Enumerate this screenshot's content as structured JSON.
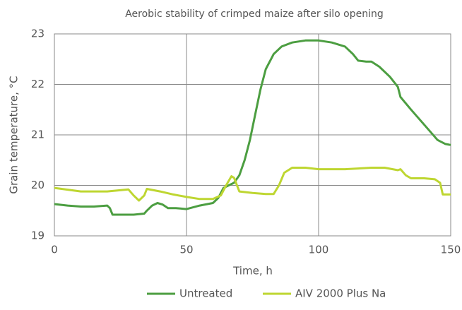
{
  "chart_data": {
    "type": "line",
    "title": "Aerobic stability of crimped maize after silo opening",
    "xlabel": "Time, h",
    "ylabel": "Grain temperature, °C",
    "xlim": [
      0,
      150
    ],
    "xticks": [
      0,
      50,
      100,
      150
    ],
    "ylim": [
      19,
      23
    ],
    "yticks": [
      19,
      20,
      21,
      22,
      23
    ],
    "grid": true,
    "legend": "bottom",
    "series": [
      {
        "name": "Untreated",
        "color": "#4c9e41",
        "x": [
          0,
          5,
          10,
          15,
          20,
          21,
          22,
          25,
          30,
          34,
          35,
          37,
          39,
          41,
          43,
          46,
          50,
          55,
          60,
          62,
          64,
          66,
          68,
          70,
          72,
          74,
          76,
          78,
          80,
          83,
          86,
          90,
          95,
          100,
          105,
          110,
          113,
          115,
          118,
          120,
          123,
          127,
          130,
          131,
          135,
          140,
          145,
          148,
          150
        ],
        "values": [
          19.63,
          19.6,
          19.58,
          19.58,
          19.6,
          19.55,
          19.42,
          19.42,
          19.42,
          19.44,
          19.5,
          19.6,
          19.65,
          19.62,
          19.55,
          19.55,
          19.53,
          19.6,
          19.65,
          19.75,
          19.95,
          20.0,
          20.05,
          20.2,
          20.5,
          20.9,
          21.4,
          21.9,
          22.3,
          22.6,
          22.75,
          22.83,
          22.87,
          22.87,
          22.83,
          22.75,
          22.6,
          22.47,
          22.45,
          22.45,
          22.35,
          22.15,
          21.95,
          21.75,
          21.5,
          21.2,
          20.9,
          20.82,
          20.8
        ]
      },
      {
        "name": "AIV 2000 Plus Na",
        "color": "#bed631",
        "x": [
          0,
          10,
          20,
          28,
          30,
          32,
          34,
          35,
          40,
          45,
          50,
          55,
          60,
          63,
          65,
          67,
          68,
          70,
          75,
          80,
          83,
          85,
          87,
          90,
          95,
          100,
          110,
          120,
          125,
          130,
          131,
          133,
          135,
          140,
          144,
          146,
          147,
          150
        ],
        "values": [
          19.95,
          19.88,
          19.88,
          19.92,
          19.8,
          19.7,
          19.8,
          19.93,
          19.88,
          19.82,
          19.77,
          19.73,
          19.73,
          19.8,
          20.0,
          20.18,
          20.15,
          19.88,
          19.85,
          19.83,
          19.83,
          20.0,
          20.25,
          20.35,
          20.35,
          20.32,
          20.32,
          20.35,
          20.35,
          20.3,
          20.32,
          20.2,
          20.14,
          20.14,
          20.12,
          20.05,
          19.82,
          19.82
        ]
      }
    ]
  }
}
